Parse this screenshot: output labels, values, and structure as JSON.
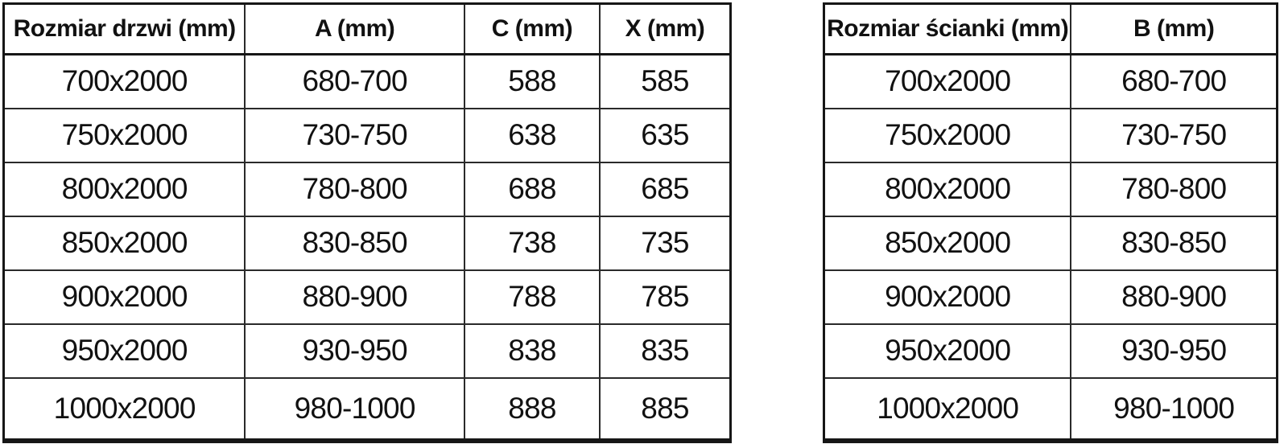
{
  "page": {
    "background_color": "#ffffff",
    "text_color": "#111111",
    "border_color": "#161616"
  },
  "tables": [
    {
      "name": "door-sizes",
      "headers": [
        "Rozmiar drzwi (mm)",
        "A (mm)",
        "C (mm)",
        "X (mm)"
      ],
      "rows": [
        [
          "700x2000",
          "680-700",
          "588",
          "585"
        ],
        [
          "750x2000",
          "730-750",
          "638",
          "635"
        ],
        [
          "800x2000",
          "780-800",
          "688",
          "685"
        ],
        [
          "850x2000",
          "830-850",
          "738",
          "735"
        ],
        [
          "900x2000",
          "880-900",
          "788",
          "785"
        ],
        [
          "950x2000",
          "930-950",
          "838",
          "835"
        ],
        [
          "1000x2000",
          "980-1000",
          "888",
          "885"
        ]
      ]
    },
    {
      "name": "wall-sizes",
      "headers": [
        "Rozmiar ścianki (mm)",
        "B (mm)"
      ],
      "rows": [
        [
          "700x2000",
          "680-700"
        ],
        [
          "750x2000",
          "730-750"
        ],
        [
          "800x2000",
          "780-800"
        ],
        [
          "850x2000",
          "830-850"
        ],
        [
          "900x2000",
          "880-900"
        ],
        [
          "950x2000",
          "930-950"
        ],
        [
          "1000x2000",
          "980-1000"
        ]
      ]
    }
  ]
}
